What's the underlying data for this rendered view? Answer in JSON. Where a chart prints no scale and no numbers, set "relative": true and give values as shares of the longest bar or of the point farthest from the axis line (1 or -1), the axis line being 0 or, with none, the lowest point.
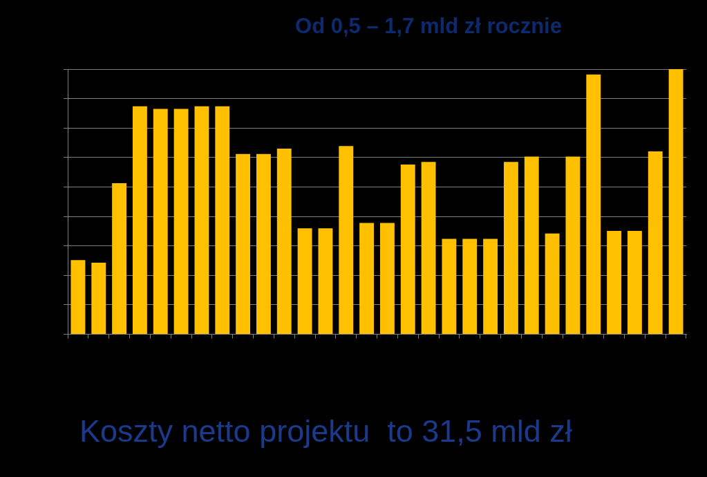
{
  "chart_data": {
    "type": "bar",
    "title": "Od 0,5 – 1,7 mld zł rocznie",
    "annotations": [
      "Koszty netto projektu  to 31,5 mld zł"
    ],
    "categories": [
      null,
      null,
      null,
      null,
      null,
      null,
      null,
      null,
      null,
      null,
      null,
      null,
      null,
      null,
      null,
      null,
      null,
      null,
      null,
      null,
      null,
      null,
      null,
      null,
      null,
      null,
      null,
      null,
      null,
      null
    ],
    "values": [
      0.28,
      0.27,
      0.57,
      0.86,
      0.85,
      0.85,
      0.86,
      0.86,
      0.68,
      0.68,
      0.7,
      0.4,
      0.4,
      0.71,
      0.42,
      0.42,
      0.64,
      0.65,
      0.36,
      0.36,
      0.36,
      0.65,
      0.67,
      0.38,
      0.67,
      0.98,
      0.39,
      0.39,
      0.69,
      1
    ],
    "color": "#ffc000",
    "relative": true,
    "grid": "y",
    "legend": false
  }
}
